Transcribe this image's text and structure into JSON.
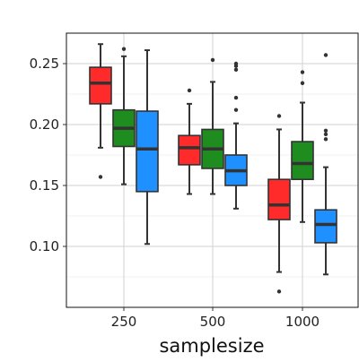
{
  "chart_data": {
    "type": "box",
    "title": "",
    "xlabel": "samplesize",
    "ylabel": "",
    "categories": [
      "250",
      "500",
      "1000"
    ],
    "ylim": [
      0.05,
      0.275
    ],
    "yticks": [
      0.1,
      0.15,
      0.2,
      0.25
    ],
    "ytick_labels": [
      "0.10",
      "0.15",
      "0.20",
      "0.25"
    ],
    "grid": true,
    "legend": "none",
    "series": [
      {
        "color": "#ff2a2a",
        "boxes": [
          {
            "category": "250",
            "lower_whisker": 0.181,
            "q1": 0.217,
            "median": 0.234,
            "q3": 0.247,
            "upper_whisker": 0.266,
            "outliers": [
              0.157
            ]
          },
          {
            "category": "500",
            "lower_whisker": 0.143,
            "q1": 0.167,
            "median": 0.181,
            "q3": 0.191,
            "upper_whisker": 0.217,
            "outliers": [
              0.228
            ]
          },
          {
            "category": "1000",
            "lower_whisker": 0.079,
            "q1": 0.122,
            "median": 0.134,
            "q3": 0.155,
            "upper_whisker": 0.196,
            "outliers": [
              0.063,
              0.207
            ]
          }
        ]
      },
      {
        "color": "#1e8c1e",
        "boxes": [
          {
            "category": "250",
            "lower_whisker": 0.151,
            "q1": 0.182,
            "median": 0.197,
            "q3": 0.212,
            "upper_whisker": 0.256,
            "outliers": [
              0.262
            ]
          },
          {
            "category": "500",
            "lower_whisker": 0.143,
            "q1": 0.164,
            "median": 0.18,
            "q3": 0.196,
            "upper_whisker": 0.235,
            "outliers": [
              0.253
            ]
          },
          {
            "category": "1000",
            "lower_whisker": 0.12,
            "q1": 0.155,
            "median": 0.168,
            "q3": 0.186,
            "upper_whisker": 0.218,
            "outliers": [
              0.234,
              0.243
            ]
          }
        ]
      },
      {
        "color": "#1e90ff",
        "boxes": [
          {
            "category": "250",
            "lower_whisker": 0.102,
            "q1": 0.145,
            "median": 0.18,
            "q3": 0.211,
            "upper_whisker": 0.261,
            "outliers": []
          },
          {
            "category": "500",
            "lower_whisker": 0.131,
            "q1": 0.15,
            "median": 0.162,
            "q3": 0.175,
            "upper_whisker": 0.201,
            "outliers": [
              0.212,
              0.222,
              0.245,
              0.248,
              0.25
            ]
          },
          {
            "category": "1000",
            "lower_whisker": 0.077,
            "q1": 0.103,
            "median": 0.118,
            "q3": 0.13,
            "upper_whisker": 0.165,
            "outliers": [
              0.188,
              0.192,
              0.195,
              0.257
            ]
          }
        ]
      }
    ]
  }
}
